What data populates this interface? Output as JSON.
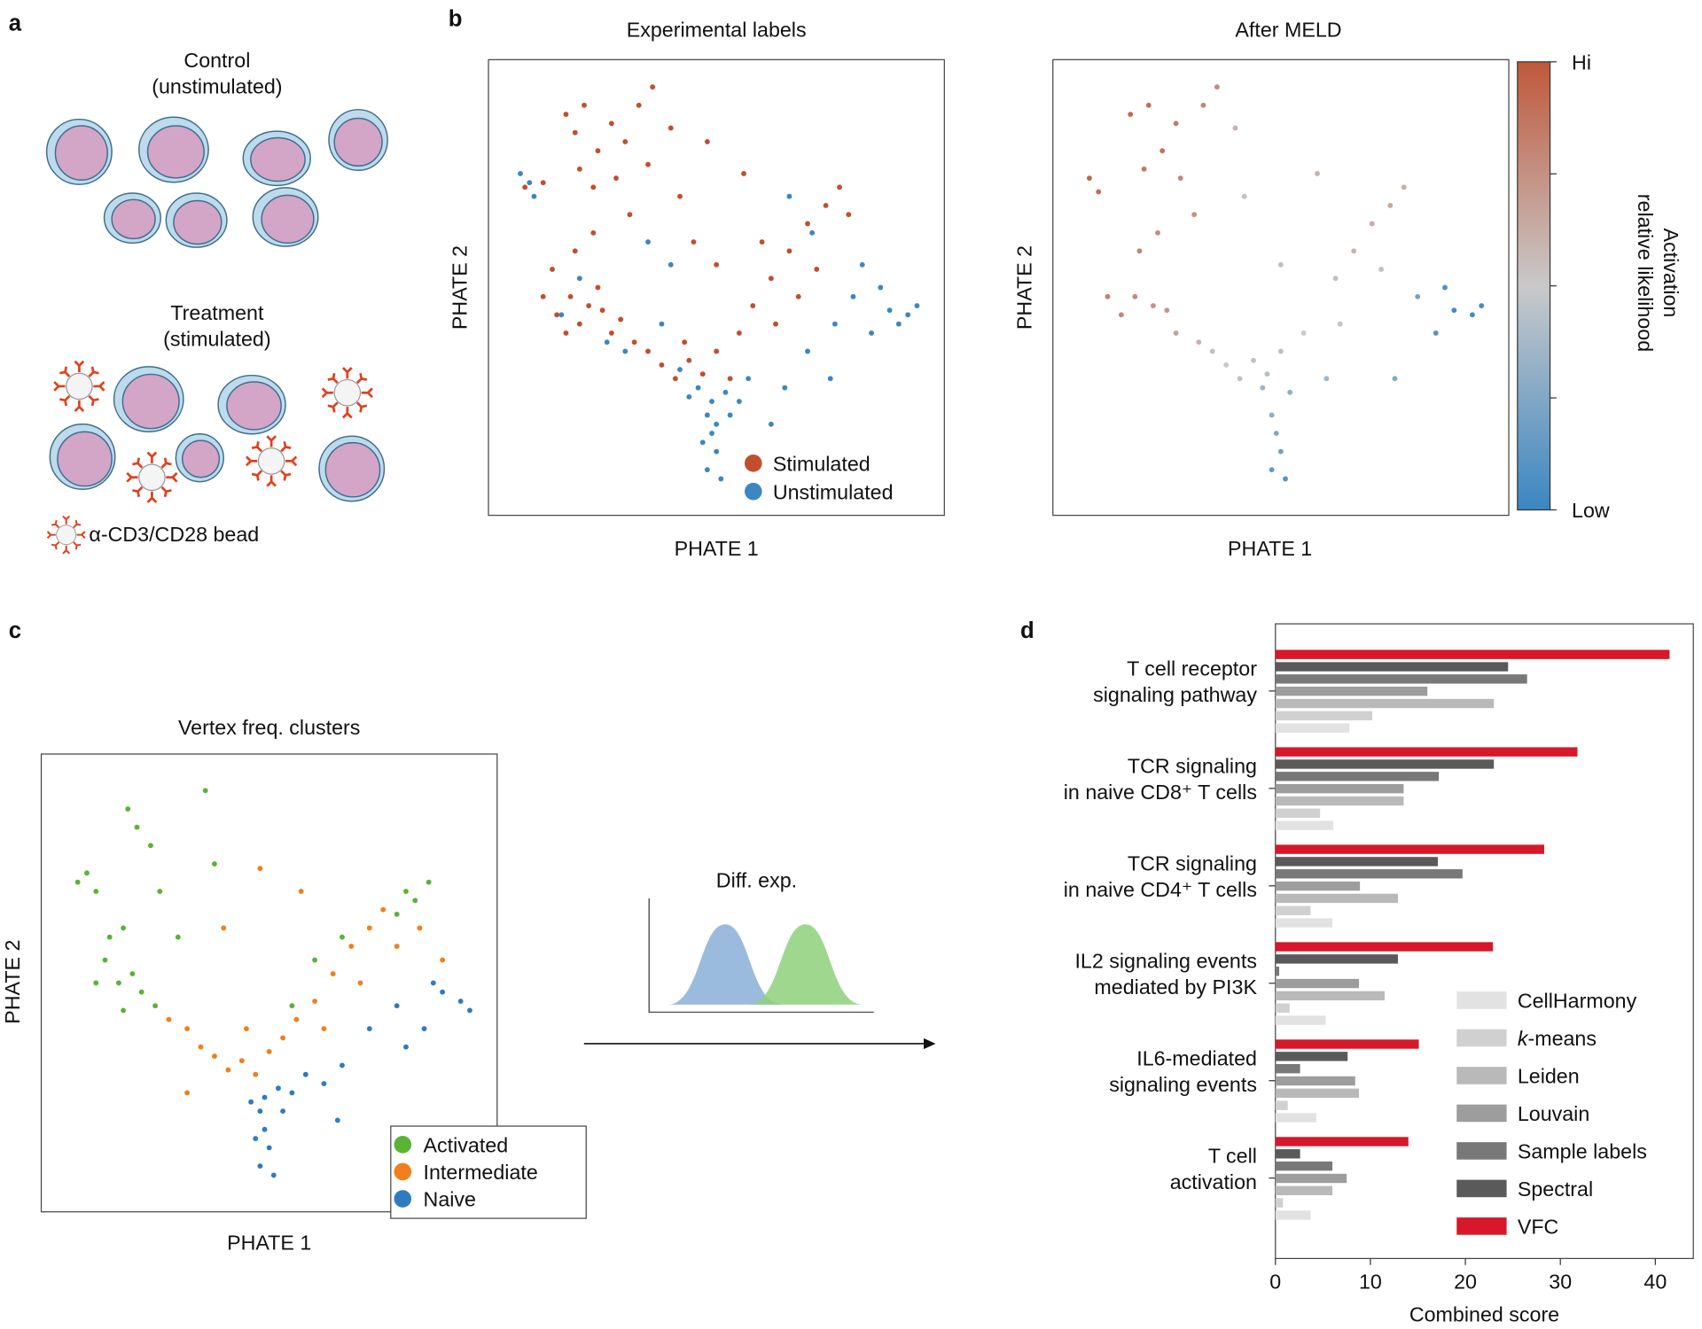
{
  "panel_letters": [
    "a",
    "b",
    "c",
    "d"
  ],
  "panel_a": {
    "control_label": "Control\n(unstimulated)",
    "treatment_label": "Treatment\n(stimulated)",
    "bead_label": "α-CD3/CD28 bead"
  },
  "panel_c_diagram": {
    "label": "Diff. exp."
  },
  "chart_data": [
    {
      "type": "scatter",
      "title": "Experimental labels",
      "x_label": "PHATE 1",
      "y_label": "PHATE 2",
      "xlim": [
        0,
        100
      ],
      "ylim": [
        0,
        100
      ],
      "legend": "lower right",
      "series": [
        {
          "name": "Stimulated",
          "color": "#c0502d",
          "x": [
            17,
            19,
            21,
            24,
            20,
            23,
            27,
            30,
            33,
            36,
            28,
            35,
            31,
            40,
            42,
            15,
            18,
            20,
            22,
            25,
            27,
            17,
            24,
            29,
            32,
            14,
            19,
            23,
            12,
            35,
            38,
            41,
            44,
            47,
            43,
            50,
            53,
            55,
            58,
            62,
            66,
            70,
            74,
            77,
            79,
            72,
            68,
            63,
            60,
            50,
            45,
            56,
            48,
            12,
            8
          ],
          "y": [
            88,
            84,
            90,
            80,
            76,
            72,
            86,
            82,
            90,
            94,
            74,
            77,
            66,
            85,
            70,
            44,
            48,
            42,
            46,
            45,
            40,
            40,
            50,
            43,
            38,
            54,
            58,
            62,
            48,
            36,
            33,
            30,
            34,
            31,
            38,
            36,
            30,
            40,
            46,
            52,
            58,
            64,
            68,
            72,
            66,
            54,
            48,
            42,
            60,
            55,
            60,
            75,
            82,
            73,
            72
          ]
        },
        {
          "name": "Unstimulated",
          "color": "#3d87c0",
          "x": [
            48,
            49,
            50,
            48,
            51,
            49,
            52,
            46,
            44,
            53,
            47,
            50,
            55,
            57,
            42,
            38,
            30,
            26,
            16,
            20,
            86,
            88,
            90,
            92,
            94,
            84,
            80,
            76,
            70,
            65,
            62,
            75,
            82,
            71,
            66,
            7,
            9,
            10,
            35,
            40
          ],
          "y": [
            22,
            18,
            14,
            10,
            8,
            25,
            27,
            28,
            26,
            22,
            16,
            20,
            25,
            30,
            32,
            42,
            36,
            38,
            44,
            52,
            50,
            45,
            42,
            44,
            46,
            40,
            48,
            42,
            36,
            28,
            20,
            30,
            55,
            62,
            70,
            75,
            73,
            70,
            60,
            55
          ]
        }
      ]
    },
    {
      "type": "scatter",
      "title": "After MELD",
      "x_label": "PHATE 1",
      "y_label": "PHATE 2",
      "xlim": [
        0,
        100
      ],
      "ylim": [
        0,
        100
      ],
      "cmap": [
        "#3a86c2",
        "#c9c9c9",
        "#c0583a"
      ],
      "points": {
        "x": [
          17,
          21,
          24,
          20,
          27,
          33,
          36,
          28,
          31,
          40,
          42,
          8,
          10,
          12,
          15,
          18,
          22,
          25,
          27,
          19,
          23,
          32,
          35,
          38,
          41,
          44,
          47,
          50,
          48,
          49,
          50,
          48,
          51,
          52,
          46,
          55,
          62,
          66,
          70,
          74,
          77,
          72,
          63,
          60,
          75,
          80,
          86,
          88,
          92,
          94,
          84,
          58,
          50
        ],
        "y": [
          88,
          90,
          80,
          76,
          86,
          90,
          94,
          74,
          66,
          85,
          70,
          74,
          71,
          48,
          44,
          48,
          46,
          45,
          40,
          58,
          62,
          38,
          36,
          33,
          30,
          34,
          31,
          36,
          22,
          18,
          14,
          10,
          8,
          27,
          28,
          40,
          52,
          58,
          64,
          68,
          72,
          54,
          42,
          30,
          30,
          48,
          50,
          45,
          44,
          46,
          40,
          75,
          55
        ],
        "values": [
          0.92,
          0.9,
          0.88,
          0.85,
          0.84,
          0.8,
          0.78,
          0.8,
          0.75,
          0.6,
          0.55,
          0.95,
          0.9,
          0.82,
          0.8,
          0.78,
          0.75,
          0.72,
          0.68,
          0.8,
          0.76,
          0.6,
          0.55,
          0.5,
          0.45,
          0.45,
          0.42,
          0.45,
          0.3,
          0.25,
          0.2,
          0.15,
          0.1,
          0.3,
          0.35,
          0.5,
          0.55,
          0.6,
          0.62,
          0.65,
          0.62,
          0.55,
          0.48,
          0.35,
          0.25,
          0.2,
          0.08,
          0.05,
          0.05,
          0.05,
          0.1,
          0.6,
          0.55
        ]
      },
      "colorbar": {
        "lim": [
          0,
          1
        ],
        "tick_marks": [
          0,
          0.25,
          0.5,
          0.75,
          1
        ],
        "low_label": "Low",
        "high_label": "Hi",
        "label": "Activation\nrelative likelihood"
      }
    },
    {
      "type": "scatter",
      "title": "Vertex freq. clusters",
      "x_label": "PHATE 1",
      "y_label": "PHATE 2",
      "xlim": [
        0,
        100
      ],
      "ylim": [
        0,
        100
      ],
      "legend": "lower right",
      "series": [
        {
          "name": "Activated",
          "color": "#5bb335",
          "x": [
            8,
            10,
            12,
            15,
            18,
            14,
            17,
            20,
            22,
            25,
            12,
            18,
            19,
            21,
            24,
            26,
            36,
            38,
            30,
            60,
            66,
            78,
            80,
            82,
            85,
            55
          ],
          "y": [
            72,
            74,
            70,
            60,
            62,
            55,
            50,
            52,
            48,
            45,
            50,
            44,
            88,
            84,
            80,
            70,
            92,
            76,
            60,
            55,
            60,
            65,
            70,
            68,
            72,
            45
          ]
        },
        {
          "name": "Intermediate",
          "color": "#f07f1c",
          "x": [
            28,
            32,
            35,
            38,
            41,
            44,
            47,
            50,
            53,
            56,
            60,
            64,
            68,
            72,
            75,
            78,
            83,
            88,
            70,
            62,
            45,
            40,
            48,
            32,
            57
          ],
          "y": [
            42,
            40,
            36,
            34,
            31,
            33,
            30,
            35,
            38,
            42,
            46,
            52,
            58,
            62,
            66,
            58,
            62,
            55,
            50,
            40,
            40,
            62,
            75,
            26,
            70
          ]
        },
        {
          "name": "Naive",
          "color": "#2f7bbf",
          "x": [
            48,
            49,
            50,
            48,
            51,
            49,
            52,
            46,
            53,
            47,
            55,
            58,
            62,
            66,
            72,
            78,
            84,
            88,
            92,
            94,
            86,
            80,
            65
          ],
          "y": [
            22,
            18,
            14,
            10,
            8,
            25,
            27,
            24,
            22,
            16,
            26,
            30,
            28,
            32,
            40,
            45,
            40,
            48,
            46,
            44,
            50,
            36,
            20
          ]
        }
      ]
    },
    {
      "type": "bar",
      "orientation": "horizontal",
      "x_label": "Combined score",
      "xlim": [
        0,
        44
      ],
      "xticks": [
        0,
        10,
        20,
        30,
        40
      ],
      "legend": "lower right",
      "categories": [
        "T cell receptor\nsignaling pathway",
        "TCR signaling\nin naive CD8⁺ T cells",
        "TCR signaling\nin naive CD4⁺ T cells",
        "IL2 signaling events\nmediated by PI3K",
        "IL6-mediated\nsignaling events",
        "T cell\nactivation"
      ],
      "series": [
        {
          "name": "CellHarmony",
          "color": "#e2e2e2",
          "values": [
            7.8,
            6.1,
            6.0,
            5.3,
            4.3,
            3.7
          ]
        },
        {
          "name": "k-means",
          "color": "#d0d0d0",
          "values": [
            10.2,
            4.7,
            3.7,
            1.5,
            1.3,
            0.8
          ]
        },
        {
          "name": "Leiden",
          "color": "#b9b9b9",
          "values": [
            23,
            13.5,
            12.9,
            11.5,
            8.8,
            6.0
          ]
        },
        {
          "name": "Louvain",
          "color": "#9d9d9d",
          "values": [
            16,
            13.5,
            8.9,
            8.8,
            8.4,
            7.5
          ]
        },
        {
          "name": "Sample labels",
          "color": "#787878",
          "values": [
            26.5,
            17.2,
            19.7,
            0.4,
            2.6,
            6.0
          ]
        },
        {
          "name": "Spectral",
          "color": "#5a5a5a",
          "values": [
            24.5,
            23,
            17.1,
            12.9,
            7.6,
            2.6
          ]
        },
        {
          "name": "VFC",
          "color": "#d7182a",
          "values": [
            41.5,
            31.8,
            28.3,
            22.9,
            15.1,
            14
          ]
        }
      ]
    }
  ]
}
